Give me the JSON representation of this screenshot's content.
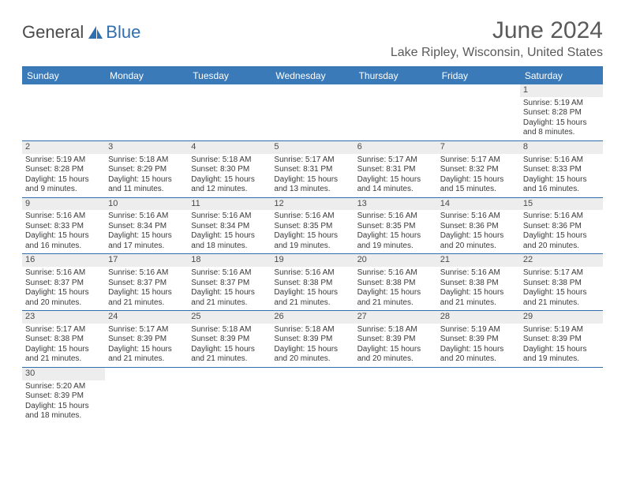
{
  "logo": {
    "text1": "General",
    "text2": "Blue"
  },
  "title": "June 2024",
  "subtitle": "Lake Ripley, Wisconsin, United States",
  "colors": {
    "header_bg": "#3a7ab8",
    "header_text": "#ffffff",
    "border": "#2f6fb0",
    "daynum_bg": "#ededed",
    "text": "#3a3a3a",
    "logo_gray": "#4a4a4a",
    "logo_blue": "#2f6fb0",
    "title_color": "#5a5a5a"
  },
  "dayNames": [
    "Sunday",
    "Monday",
    "Tuesday",
    "Wednesday",
    "Thursday",
    "Friday",
    "Saturday"
  ],
  "weeks": [
    [
      null,
      null,
      null,
      null,
      null,
      null,
      {
        "d": "1",
        "sr": "Sunrise: 5:19 AM",
        "ss": "Sunset: 8:28 PM",
        "dl1": "Daylight: 15 hours",
        "dl2": "and 8 minutes."
      }
    ],
    [
      {
        "d": "2",
        "sr": "Sunrise: 5:19 AM",
        "ss": "Sunset: 8:28 PM",
        "dl1": "Daylight: 15 hours",
        "dl2": "and 9 minutes."
      },
      {
        "d": "3",
        "sr": "Sunrise: 5:18 AM",
        "ss": "Sunset: 8:29 PM",
        "dl1": "Daylight: 15 hours",
        "dl2": "and 11 minutes."
      },
      {
        "d": "4",
        "sr": "Sunrise: 5:18 AM",
        "ss": "Sunset: 8:30 PM",
        "dl1": "Daylight: 15 hours",
        "dl2": "and 12 minutes."
      },
      {
        "d": "5",
        "sr": "Sunrise: 5:17 AM",
        "ss": "Sunset: 8:31 PM",
        "dl1": "Daylight: 15 hours",
        "dl2": "and 13 minutes."
      },
      {
        "d": "6",
        "sr": "Sunrise: 5:17 AM",
        "ss": "Sunset: 8:31 PM",
        "dl1": "Daylight: 15 hours",
        "dl2": "and 14 minutes."
      },
      {
        "d": "7",
        "sr": "Sunrise: 5:17 AM",
        "ss": "Sunset: 8:32 PM",
        "dl1": "Daylight: 15 hours",
        "dl2": "and 15 minutes."
      },
      {
        "d": "8",
        "sr": "Sunrise: 5:16 AM",
        "ss": "Sunset: 8:33 PM",
        "dl1": "Daylight: 15 hours",
        "dl2": "and 16 minutes."
      }
    ],
    [
      {
        "d": "9",
        "sr": "Sunrise: 5:16 AM",
        "ss": "Sunset: 8:33 PM",
        "dl1": "Daylight: 15 hours",
        "dl2": "and 16 minutes."
      },
      {
        "d": "10",
        "sr": "Sunrise: 5:16 AM",
        "ss": "Sunset: 8:34 PM",
        "dl1": "Daylight: 15 hours",
        "dl2": "and 17 minutes."
      },
      {
        "d": "11",
        "sr": "Sunrise: 5:16 AM",
        "ss": "Sunset: 8:34 PM",
        "dl1": "Daylight: 15 hours",
        "dl2": "and 18 minutes."
      },
      {
        "d": "12",
        "sr": "Sunrise: 5:16 AM",
        "ss": "Sunset: 8:35 PM",
        "dl1": "Daylight: 15 hours",
        "dl2": "and 19 minutes."
      },
      {
        "d": "13",
        "sr": "Sunrise: 5:16 AM",
        "ss": "Sunset: 8:35 PM",
        "dl1": "Daylight: 15 hours",
        "dl2": "and 19 minutes."
      },
      {
        "d": "14",
        "sr": "Sunrise: 5:16 AM",
        "ss": "Sunset: 8:36 PM",
        "dl1": "Daylight: 15 hours",
        "dl2": "and 20 minutes."
      },
      {
        "d": "15",
        "sr": "Sunrise: 5:16 AM",
        "ss": "Sunset: 8:36 PM",
        "dl1": "Daylight: 15 hours",
        "dl2": "and 20 minutes."
      }
    ],
    [
      {
        "d": "16",
        "sr": "Sunrise: 5:16 AM",
        "ss": "Sunset: 8:37 PM",
        "dl1": "Daylight: 15 hours",
        "dl2": "and 20 minutes."
      },
      {
        "d": "17",
        "sr": "Sunrise: 5:16 AM",
        "ss": "Sunset: 8:37 PM",
        "dl1": "Daylight: 15 hours",
        "dl2": "and 21 minutes."
      },
      {
        "d": "18",
        "sr": "Sunrise: 5:16 AM",
        "ss": "Sunset: 8:37 PM",
        "dl1": "Daylight: 15 hours",
        "dl2": "and 21 minutes."
      },
      {
        "d": "19",
        "sr": "Sunrise: 5:16 AM",
        "ss": "Sunset: 8:38 PM",
        "dl1": "Daylight: 15 hours",
        "dl2": "and 21 minutes."
      },
      {
        "d": "20",
        "sr": "Sunrise: 5:16 AM",
        "ss": "Sunset: 8:38 PM",
        "dl1": "Daylight: 15 hours",
        "dl2": "and 21 minutes."
      },
      {
        "d": "21",
        "sr": "Sunrise: 5:16 AM",
        "ss": "Sunset: 8:38 PM",
        "dl1": "Daylight: 15 hours",
        "dl2": "and 21 minutes."
      },
      {
        "d": "22",
        "sr": "Sunrise: 5:17 AM",
        "ss": "Sunset: 8:38 PM",
        "dl1": "Daylight: 15 hours",
        "dl2": "and 21 minutes."
      }
    ],
    [
      {
        "d": "23",
        "sr": "Sunrise: 5:17 AM",
        "ss": "Sunset: 8:38 PM",
        "dl1": "Daylight: 15 hours",
        "dl2": "and 21 minutes."
      },
      {
        "d": "24",
        "sr": "Sunrise: 5:17 AM",
        "ss": "Sunset: 8:39 PM",
        "dl1": "Daylight: 15 hours",
        "dl2": "and 21 minutes."
      },
      {
        "d": "25",
        "sr": "Sunrise: 5:18 AM",
        "ss": "Sunset: 8:39 PM",
        "dl1": "Daylight: 15 hours",
        "dl2": "and 21 minutes."
      },
      {
        "d": "26",
        "sr": "Sunrise: 5:18 AM",
        "ss": "Sunset: 8:39 PM",
        "dl1": "Daylight: 15 hours",
        "dl2": "and 20 minutes."
      },
      {
        "d": "27",
        "sr": "Sunrise: 5:18 AM",
        "ss": "Sunset: 8:39 PM",
        "dl1": "Daylight: 15 hours",
        "dl2": "and 20 minutes."
      },
      {
        "d": "28",
        "sr": "Sunrise: 5:19 AM",
        "ss": "Sunset: 8:39 PM",
        "dl1": "Daylight: 15 hours",
        "dl2": "and 20 minutes."
      },
      {
        "d": "29",
        "sr": "Sunrise: 5:19 AM",
        "ss": "Sunset: 8:39 PM",
        "dl1": "Daylight: 15 hours",
        "dl2": "and 19 minutes."
      }
    ],
    [
      {
        "d": "30",
        "sr": "Sunrise: 5:20 AM",
        "ss": "Sunset: 8:39 PM",
        "dl1": "Daylight: 15 hours",
        "dl2": "and 18 minutes."
      },
      null,
      null,
      null,
      null,
      null,
      null
    ]
  ]
}
